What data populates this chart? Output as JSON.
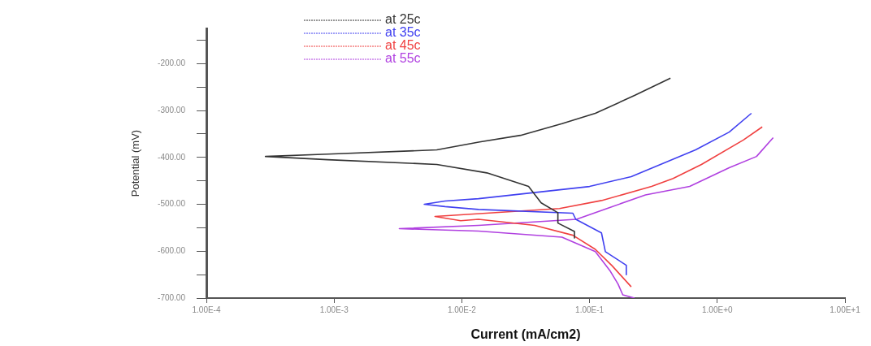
{
  "chart_data": {
    "type": "line",
    "xlabel": "Current (mA/cm2)",
    "ylabel": "Potential (mV)",
    "log": "x",
    "grid": false,
    "legend": "top left",
    "marker": "none",
    "line_style": "solid",
    "xlim": [
      0.0001,
      10
    ],
    "xticks": [
      {
        "value": 0.0001,
        "label": "1.00E-4"
      },
      {
        "value": 0.001,
        "label": "1.00E-3"
      },
      {
        "value": 0.01,
        "label": "1.00E-2"
      },
      {
        "value": 0.1,
        "label": "1.00E-1"
      },
      {
        "value": 1,
        "label": "1.00E+0"
      },
      {
        "value": 10,
        "label": "1.00E+1"
      }
    ],
    "ylim": [
      -700,
      -125
    ],
    "yticks": [
      {
        "value": -700,
        "label": "-700.00"
      },
      {
        "value": -650,
        "label": null
      },
      {
        "value": -600,
        "label": "-600.00"
      },
      {
        "value": -550,
        "label": null
      },
      {
        "value": -500,
        "label": "-500.00"
      },
      {
        "value": -450,
        "label": null
      },
      {
        "value": -400,
        "label": "-400.00"
      },
      {
        "value": -350,
        "label": null
      },
      {
        "value": -300,
        "label": "-300.00"
      },
      {
        "value": -250,
        "label": null
      },
      {
        "value": -200,
        "label": "-200.00"
      },
      {
        "value": -150,
        "label": null
      }
    ],
    "series": [
      {
        "name": "at 25c",
        "color": "#333333",
        "x": [
          0.43,
          0.225,
          0.111,
          0.0608,
          0.0288,
          0.0138,
          0.00637,
          0.00089,
          0.00029,
          0.00089,
          0.00637,
          0.0157,
          0.0333,
          0.0418,
          0.0565,
          0.0565,
          0.0762,
          0.0762
        ],
        "values": [
          -231,
          -268,
          -306,
          -328,
          -353,
          -367,
          -384,
          -393,
          -398,
          -405,
          -415,
          -433,
          -462,
          -497,
          -518,
          -540,
          -558,
          -572
        ]
      },
      {
        "name": "at 35c",
        "color": "#4040f0",
        "x": [
          1.85,
          1.24,
          0.676,
          0.212,
          0.1,
          0.0135,
          0.0074,
          0.00508,
          0.0074,
          0.0135,
          0.074,
          0.078,
          0.124,
          0.133,
          0.194,
          0.194
        ],
        "values": [
          -306,
          -346,
          -384,
          -441,
          -462,
          -488,
          -493,
          -500,
          -505,
          -511,
          -519,
          -532,
          -561,
          -601,
          -630,
          -650
        ]
      },
      {
        "name": "at 45c",
        "color": "#f04040",
        "x": [
          2.25,
          1.6,
          0.752,
          0.451,
          0.306,
          0.124,
          0.0582,
          0.00616,
          0.0098,
          0.0135,
          0.0372,
          0.074,
          0.111,
          0.15,
          0.212
        ],
        "values": [
          -335,
          -363,
          -415,
          -445,
          -462,
          -492,
          -509,
          -526,
          -535,
          -532,
          -545,
          -566,
          -596,
          -631,
          -676
        ]
      },
      {
        "name": "at 55c",
        "color": "#b040e0",
        "x": [
          2.74,
          2.03,
          1.24,
          0.608,
          0.274,
          0.079,
          0.0135,
          0.00324,
          0.0135,
          0.0608,
          0.111,
          0.144,
          0.167,
          0.182,
          0.225
        ],
        "values": [
          -358,
          -398,
          -422,
          -462,
          -480,
          -532,
          -545,
          -552,
          -557,
          -570,
          -601,
          -641,
          -670,
          -693,
          -700
        ]
      }
    ]
  }
}
